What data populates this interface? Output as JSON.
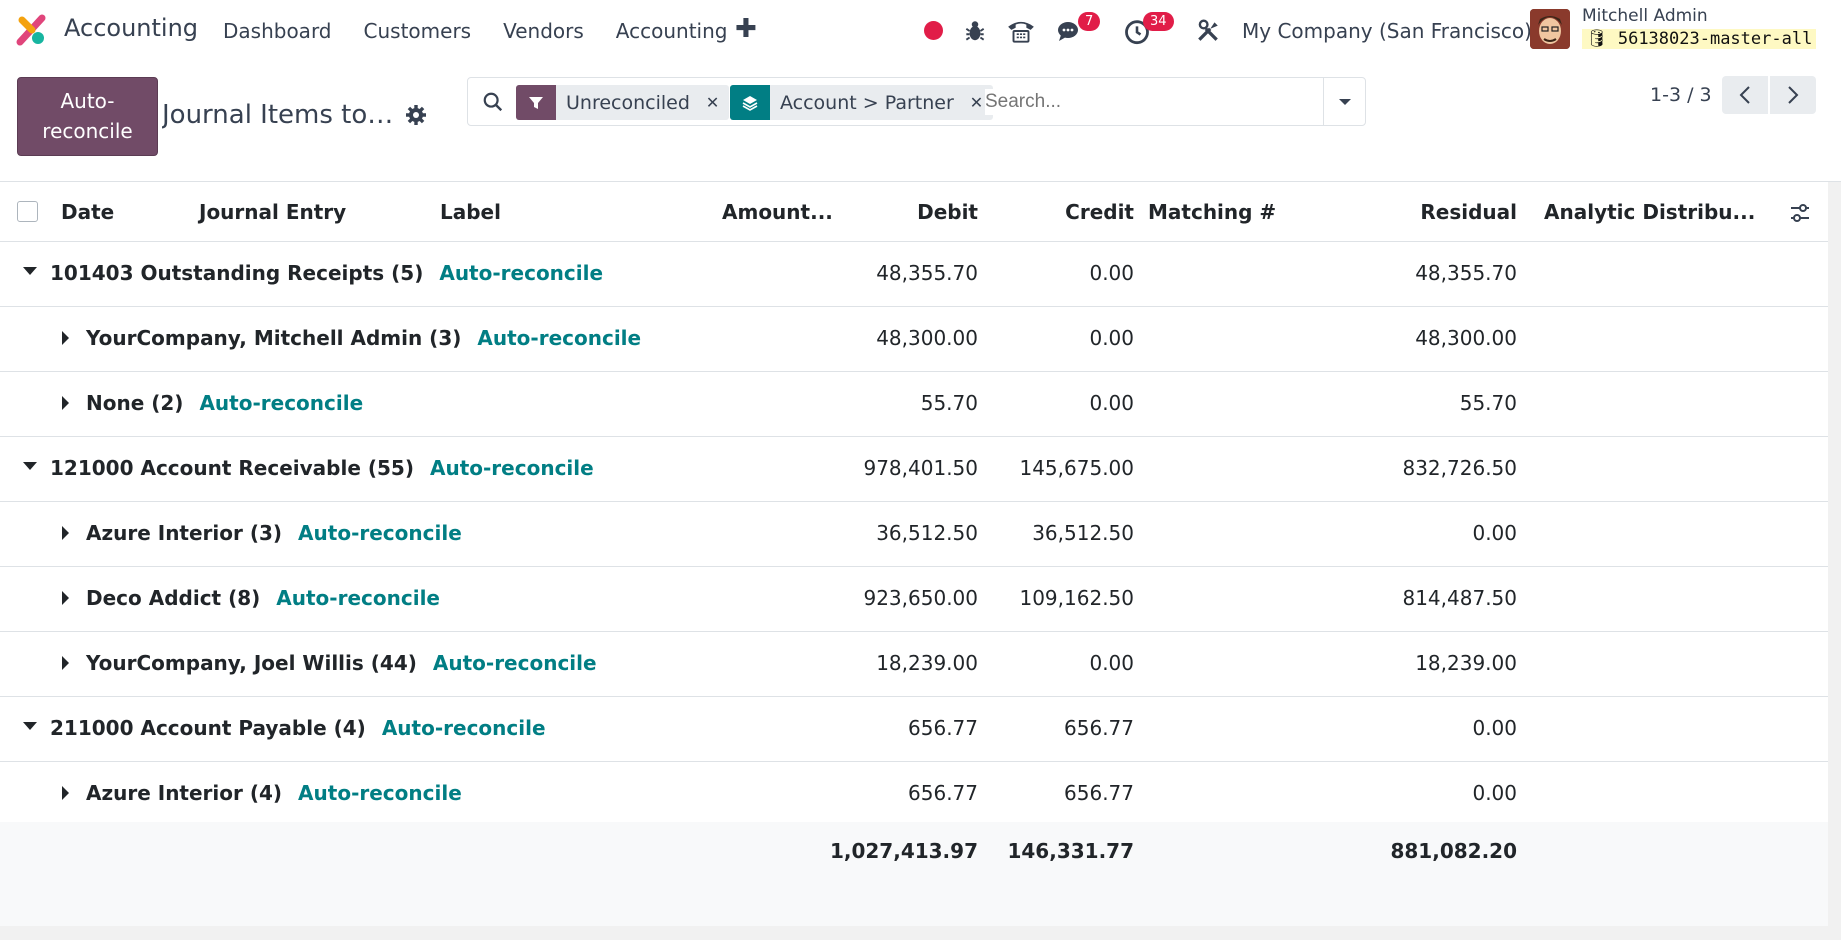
{
  "app": {
    "name": "Accounting"
  },
  "menu": [
    "Dashboard",
    "Customers",
    "Vendors",
    "Accounting"
  ],
  "systray": {
    "messages_badge": "7",
    "activities_badge": "34"
  },
  "company": "My Company (San Francisco)",
  "user": {
    "name": "Mitchell Admin",
    "db": "56138023-master-all"
  },
  "control": {
    "auto_reconcile_button": "Auto-\nreconcile",
    "title": "Journal Items to r...",
    "search": {
      "facets": [
        {
          "label": "Unreconciled",
          "icon": "filter-icon",
          "color": "#714b67"
        },
        {
          "label": "Account > Partner",
          "icon": "layers-icon",
          "color": "#017e84"
        }
      ],
      "placeholder": "Search..."
    },
    "pager": "1-3 / 3"
  },
  "table": {
    "headers": {
      "date": "Date",
      "journal_entry": "Journal Entry",
      "label": "Label",
      "amount": "Amount...",
      "debit": "Debit",
      "credit": "Credit",
      "matching": "Matching #",
      "residual": "Residual",
      "analytic": "Analytic Distribu..."
    },
    "action_label": "Auto-reconcile",
    "rows": [
      {
        "level": 0,
        "label": "101403 Outstanding Receipts (5)",
        "debit": "48,355.70",
        "credit": "0.00",
        "residual": "48,355.70"
      },
      {
        "level": 1,
        "label": "YourCompany, Mitchell Admin (3)",
        "debit": "48,300.00",
        "credit": "0.00",
        "residual": "48,300.00"
      },
      {
        "level": 1,
        "label": "None (2)",
        "debit": "55.70",
        "credit": "0.00",
        "residual": "55.70"
      },
      {
        "level": 0,
        "label": "121000 Account Receivable (55)",
        "debit": "978,401.50",
        "credit": "145,675.00",
        "residual": "832,726.50"
      },
      {
        "level": 1,
        "label": "Azure Interior (3)",
        "debit": "36,512.50",
        "credit": "36,512.50",
        "residual": "0.00"
      },
      {
        "level": 1,
        "label": "Deco Addict (8)",
        "debit": "923,650.00",
        "credit": "109,162.50",
        "residual": "814,487.50"
      },
      {
        "level": 1,
        "label": "YourCompany, Joel Willis (44)",
        "debit": "18,239.00",
        "credit": "0.00",
        "residual": "18,239.00"
      },
      {
        "level": 0,
        "label": "211000 Account Payable (4)",
        "debit": "656.77",
        "credit": "656.77",
        "residual": "0.00"
      },
      {
        "level": 1,
        "label": "Azure Interior (4)",
        "debit": "656.77",
        "credit": "656.77",
        "residual": "0.00"
      }
    ],
    "totals": {
      "debit": "1,027,413.97",
      "credit": "146,331.77",
      "residual": "881,082.20"
    }
  }
}
